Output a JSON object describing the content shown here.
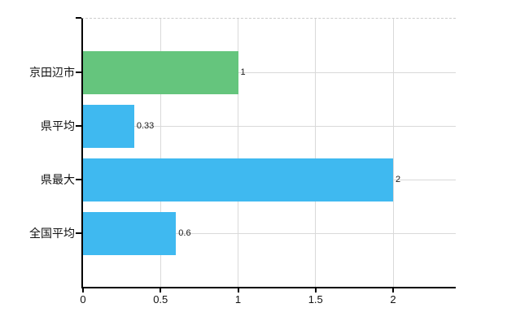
{
  "chart_data": {
    "type": "bar",
    "orientation": "horizontal",
    "title": "",
    "xlabel": "",
    "ylabel": "",
    "categories": [
      "京田辺市",
      "県平均",
      "県最大",
      "全国平均"
    ],
    "values": [
      1,
      0.33,
      2,
      0.6
    ],
    "value_labels": [
      "1",
      "0.33",
      "2",
      "0.6"
    ],
    "bar_colors": [
      "#65c57d",
      "#3fb9f0",
      "#3fb9f0",
      "#3fb9f0"
    ],
    "x_ticks": [
      0,
      0.5,
      1,
      1.5,
      2
    ],
    "x_tick_labels": [
      "0",
      "0.5",
      "1",
      "1.5",
      "2"
    ],
    "xlim": [
      0,
      2.4
    ],
    "grid": true,
    "legend": false,
    "colors": {
      "axis": "#000000",
      "grid": "#d9d9d9",
      "top_border": "#cccccc",
      "text": "#111111",
      "value_text": "#1a1a1a",
      "background": "#ffffff"
    }
  }
}
